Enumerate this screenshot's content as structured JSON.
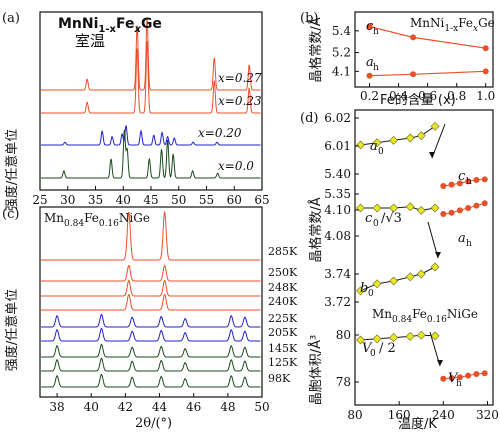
{
  "chart_data": [
    {
      "panel": "(a)",
      "type": "line",
      "title": "MnNi1-xFexGe",
      "subtitle": "室温",
      "xlabel": "",
      "ylabel": "强度/任意单位",
      "xlim": [
        25,
        65
      ],
      "xticks": [
        25,
        30,
        35,
        40,
        45,
        50,
        55,
        60,
        65
      ],
      "series": [
        {
          "name": "x=0.27",
          "color": "#e8502a",
          "peaks": [
            [
              33.5,
              0.15
            ],
            [
              42.5,
              0.9
            ],
            [
              44.3,
              1.0
            ],
            [
              56.4,
              0.45
            ],
            [
              62.7,
              0.35
            ]
          ]
        },
        {
          "name": "x=0.23",
          "color": "#e8502a",
          "peaks": [
            [
              33.5,
              0.15
            ],
            [
              42.5,
              0.9
            ],
            [
              44.3,
              1.0
            ],
            [
              56.4,
              0.45
            ],
            [
              62.7,
              0.35
            ]
          ]
        },
        {
          "name": "x=0.20",
          "color": "#2020c8",
          "peaks": [
            [
              29.5,
              0.1
            ],
            [
              36.2,
              0.5
            ],
            [
              38.0,
              0.3
            ],
            [
              39.8,
              0.4
            ],
            [
              40.5,
              0.7
            ],
            [
              43.2,
              0.5
            ],
            [
              45.5,
              0.35
            ],
            [
              47.0,
              0.45
            ],
            [
              48.0,
              0.3
            ],
            [
              49.2,
              0.25
            ],
            [
              52.6,
              0.1
            ],
            [
              56.9,
              0.1
            ]
          ]
        },
        {
          "name": "x=0.0",
          "color": "#1a4a1a",
          "peaks": [
            [
              29.3,
              0.15
            ],
            [
              37.8,
              0.4
            ],
            [
              40.2,
              1.0
            ],
            [
              40.7,
              0.6
            ],
            [
              44.7,
              0.4
            ],
            [
              46.9,
              0.6
            ],
            [
              48.0,
              0.8
            ],
            [
              49.0,
              0.5
            ],
            [
              52.5,
              0.15
            ],
            [
              57.0,
              0.1
            ]
          ]
        }
      ]
    },
    {
      "panel": "(b)",
      "type": "line",
      "title": "MnNi1-xFexGe",
      "xlabel": "Fe的含量 (x)",
      "ylabel": "晶格常数/Å",
      "xlim": [
        0.1,
        1.05
      ],
      "xticks": [
        "0.2",
        "0.4",
        "0.6",
        "0.8",
        "1.0"
      ],
      "yticks": [
        "4.1",
        "5.2",
        "5.4"
      ],
      "series": [
        {
          "name": "c_h",
          "color": "#e8502a",
          "points": [
            [
              0.2,
              5.44
            ],
            [
              0.5,
              5.34
            ],
            [
              1.0,
              5.24
            ]
          ]
        },
        {
          "name": "a_h",
          "color": "#e8502a",
          "points": [
            [
              0.2,
              4.07
            ],
            [
              0.5,
              4.08
            ],
            [
              1.0,
              4.1
            ]
          ]
        }
      ]
    },
    {
      "panel": "(c)",
      "type": "line",
      "title": "Mn0.84Fe0.16NiGe",
      "xlabel": "2θ/(°)",
      "ylabel": "强度/任意单位",
      "xlim": [
        37,
        50
      ],
      "xticks": [
        38,
        40,
        42,
        44,
        46,
        48,
        50
      ],
      "series": [
        {
          "name": "285K",
          "color": "#e8502a"
        },
        {
          "name": "250K",
          "color": "#e8502a"
        },
        {
          "name": "248K",
          "color": "#e8502a"
        },
        {
          "name": "240K",
          "color": "#e8502a"
        },
        {
          "name": "225K",
          "color": "#2020c8"
        },
        {
          "name": "205K",
          "color": "#2020c8"
        },
        {
          "name": "145K",
          "color": "#1a4a1a"
        },
        {
          "name": "125K",
          "color": "#1a4a1a"
        },
        {
          "name": "98K",
          "color": "#1a4a1a"
        }
      ],
      "peaks_hex": [
        42.2,
        44.3
      ],
      "peaks_ortho": [
        38.0,
        40.6,
        42.4,
        44.1,
        45.5,
        48.2,
        49.0
      ]
    },
    {
      "panel": "(d)",
      "type": "line",
      "title": "Mn0.84Fe0.16NiGe",
      "xlabel": "温度/K",
      "ylabel_top": "晶格常数/Å",
      "ylabel_bottom": "晶胞体积/Å³",
      "xlim": [
        80,
        330
      ],
      "xticks": [
        80,
        160,
        240,
        320
      ],
      "subpanels": [
        {
          "yticks": [
            "5.35",
            "5.40",
            "6.01",
            "6.02"
          ],
          "series": [
            {
              "name": "a0",
              "color": "#1a1a1a",
              "marker": "diamond-yellow",
              "points": [
                [
                  90,
                  6.008
                ],
                [
                  120,
                  6.009
                ],
                [
                  150,
                  6.01
                ],
                [
                  180,
                  6.011
                ],
                [
                  200,
                  6.012
                ],
                [
                  225,
                  6.016
                ]
              ]
            },
            {
              "name": "c_h",
              "color": "#e8502a",
              "marker": "circle",
              "points": [
                [
                  240,
                  5.37
                ],
                [
                  255,
                  5.372
                ],
                [
                  270,
                  5.374
                ],
                [
                  285,
                  5.377
                ],
                [
                  300,
                  5.379
                ],
                [
                  315,
                  5.38
                ]
              ]
            }
          ]
        },
        {
          "yticks": [
            "3.72",
            "3.74",
            "4.08",
            "4.10"
          ],
          "series": [
            {
              "name": "c0/√3",
              "color": "#1a1a1a",
              "marker": "diamond-yellow",
              "points": [
                [
                  90,
                  4.1
                ],
                [
                  120,
                  4.1
                ],
                [
                  150,
                  4.1
                ],
                [
                  180,
                  4.101
                ],
                [
                  200,
                  4.098
                ],
                [
                  225,
                  4.1
                ]
              ]
            },
            {
              "name": "a_h",
              "color": "#e8502a",
              "marker": "circle",
              "points": [
                [
                  240,
                  4.095
                ],
                [
                  255,
                  4.096
                ],
                [
                  270,
                  4.098
                ],
                [
                  285,
                  4.1
                ],
                [
                  300,
                  4.102
                ],
                [
                  315,
                  4.104
                ]
              ]
            },
            {
              "name": "b0",
              "color": "#1a1a1a",
              "marker": "diamond-yellow",
              "points": [
                [
                  90,
                  3.728
                ],
                [
                  120,
                  3.733
                ],
                [
                  150,
                  3.735
                ],
                [
                  180,
                  3.738
                ],
                [
                  200,
                  3.74
                ],
                [
                  225,
                  3.745
                ]
              ]
            }
          ]
        },
        {
          "yticks": [
            "78",
            "80"
          ],
          "series": [
            {
              "name": "V0/2",
              "color": "#1a1a1a",
              "marker": "diamond-yellow",
              "points": [
                [
                  90,
                  79.5
                ],
                [
                  120,
                  79.6
                ],
                [
                  150,
                  79.7
                ],
                [
                  180,
                  79.8
                ],
                [
                  200,
                  79.9
                ],
                [
                  225,
                  79.85
                ]
              ]
            },
            {
              "name": "V_h",
              "color": "#e8502a",
              "marker": "circle",
              "points": [
                [
                  240,
                  77.7
                ],
                [
                  255,
                  77.75
                ],
                [
                  270,
                  77.8
                ],
                [
                  285,
                  77.9
                ],
                [
                  300,
                  78.0
                ],
                [
                  315,
                  78.05
                ]
              ]
            }
          ]
        }
      ]
    }
  ],
  "labels": {
    "a_panel": "(a)",
    "a_title": "MnNi",
    "a_title_sub1": "1-x",
    "a_title_mid": "Fe",
    "a_title_sub2": "x",
    "a_title_end": "Ge",
    "a_subtitle": "室温",
    "b_panel": "(b)",
    "c_panel": "(c)",
    "c_title": "Mn",
    "c_title_sub1": "0.84",
    "c_title_mid": "Fe",
    "c_title_sub2": "0.16",
    "c_title_end": "NiGe",
    "d_panel": "(d)",
    "d_inner_title": "Mn",
    "d_inner_sub1": "0.84",
    "d_inner_mid": "Fe",
    "d_inner_sub2": "0.16",
    "d_inner_end": "NiGe"
  }
}
